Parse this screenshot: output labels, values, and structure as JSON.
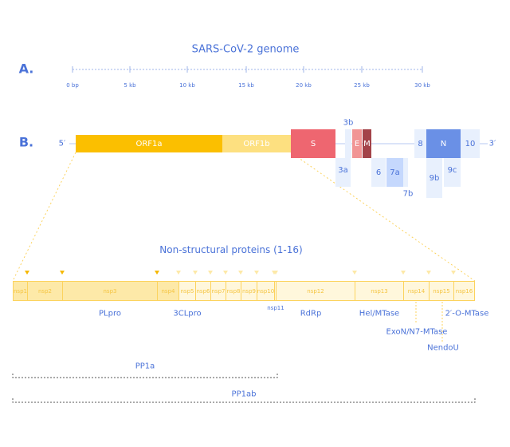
{
  "title": "SARS-CoV-2 genome",
  "section_a": "A.",
  "section_b": "B.",
  "axis_ticks": [
    "0 bp",
    "5 kb",
    "10 kb",
    "15 kb",
    "20 kb",
    "25 kb",
    "30 kb"
  ],
  "five_prime": "5′",
  "three_prime": "3′",
  "genes": {
    "orf1a": "ORF1a",
    "orf1b": "ORF1b",
    "s": "S",
    "e": "E",
    "m": "M",
    "g3a": "3a",
    "g3b": "3b",
    "g6": "6",
    "g7a": "7a",
    "g7b": "7b",
    "g8": "8",
    "n": "N",
    "g9b": "9b",
    "g9c": "9c",
    "g10": "10"
  },
  "colors": {
    "orf1a": "#fbbf00",
    "orf1b": "#fde080",
    "s": "#ee6670",
    "e": "#f19595",
    "m": "#a34349",
    "n": "#6a90e6",
    "accessory": "#e8f0fd",
    "g7a": "#c5d8fd",
    "nsp_early": "#fde9a8",
    "nsp_late": "#fff7dc"
  },
  "nsp_title": "Non-structural proteins (1-16)",
  "nsps": [
    "nsp1",
    "nsp2",
    "nsp3",
    "nsp4",
    "nsp5",
    "nsp6",
    "nsp7",
    "nsp8",
    "nsp9",
    "nsp10",
    "nsp11",
    "nsp12",
    "nsp13",
    "nsp14",
    "nsp15",
    "nsp16"
  ],
  "functions": {
    "plpro": "PLpro",
    "clpro": "3CLpro",
    "nsp11": "nsp11",
    "rdrp": "RdRp",
    "hel": "Hel/MTase",
    "exon": "ExoN/N7-MTase",
    "nendou": "NendoU",
    "omtase": "2′-O-MTase"
  },
  "pp1a": "PP1a",
  "pp1ab": "PP1ab"
}
